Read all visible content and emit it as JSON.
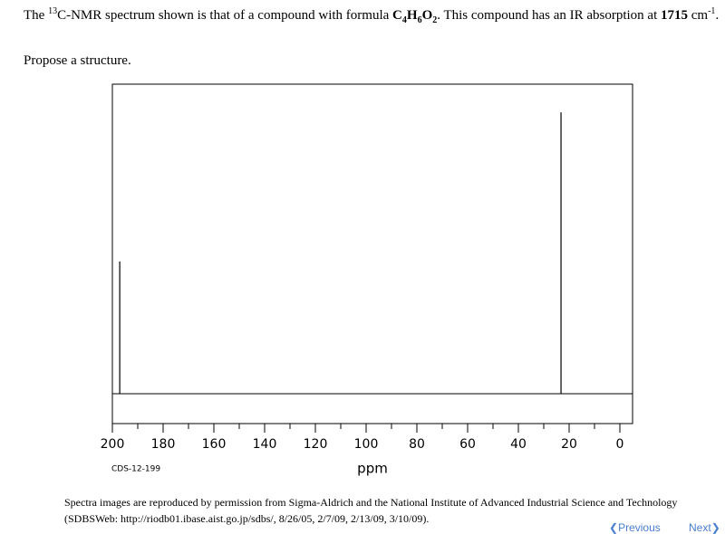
{
  "question": {
    "before": "The ",
    "isotope": "13",
    "after_isotope": "C-NMR spectrum shown is that of a compound with formula ",
    "formula": [
      "C",
      "4",
      "H",
      "6",
      "O",
      "2"
    ],
    "after_formula": ". This compound has an IR absorption at ",
    "ir_value": "1715",
    "ir_unit": " cm",
    "ir_exponent": "-1",
    "end": ".",
    "prompt": "Propose a structure."
  },
  "chart_data": {
    "type": "spectrum",
    "xlabel": "ppm",
    "code": "CDS-12-199",
    "x": [
      197.1,
      23.2
    ],
    "values": [
      47,
      100
    ],
    "color": "#000000",
    "xlim": [
      200,
      0
    ],
    "xticks": [
      200,
      180,
      160,
      140,
      120,
      100,
      80,
      60,
      40,
      20,
      0
    ],
    "xminorticks": [
      190,
      170,
      150,
      130,
      110,
      90,
      70,
      50,
      30,
      10
    ],
    "ylim": [
      0,
      110
    ]
  },
  "credit": {
    "line1": "Spectra images are reproduced by permission from Sigma-Aldrich and the National Institute of Advanced Industrial Science and Technology",
    "line2": "(SDBSWeb: http://riodb01.ibase.aist.go.jp/sdbs/, 8/26/05, 2/7/09, 2/13/09, 3/10/09)."
  },
  "nav": {
    "previous": "Previous",
    "next": "Next"
  }
}
